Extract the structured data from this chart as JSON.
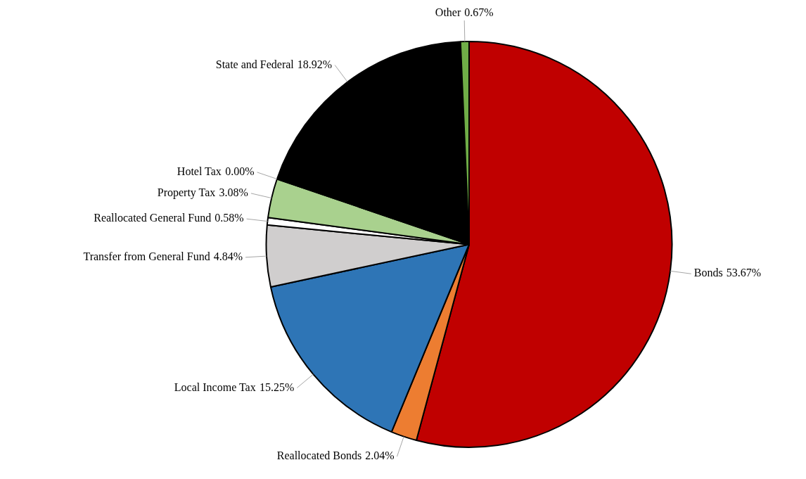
{
  "chart_data": {
    "type": "pie",
    "categories": [
      "Bonds",
      "Reallocated Bonds",
      "Local Income Tax",
      "Transfer from General Fund",
      "Reallocated General Fund",
      "Property Tax",
      "Hotel Tax",
      "State and Federal",
      "Other"
    ],
    "values": [
      53.67,
      2.04,
      15.25,
      4.84,
      0.58,
      3.08,
      0.0,
      18.92,
      0.67
    ],
    "colors": [
      "#c00000",
      "#ed7d31",
      "#2e75b6",
      "#d0cece",
      "#ffffff",
      "#a9d18e",
      "#ffc000",
      "#000000",
      "#70ad47"
    ],
    "value_labels": [
      "53.67%",
      "2.04%",
      "15.25%",
      "4.84%",
      "0.58%",
      "3.08%",
      "0.00%",
      "18.92%",
      "0.67%"
    ],
    "legend": false
  }
}
